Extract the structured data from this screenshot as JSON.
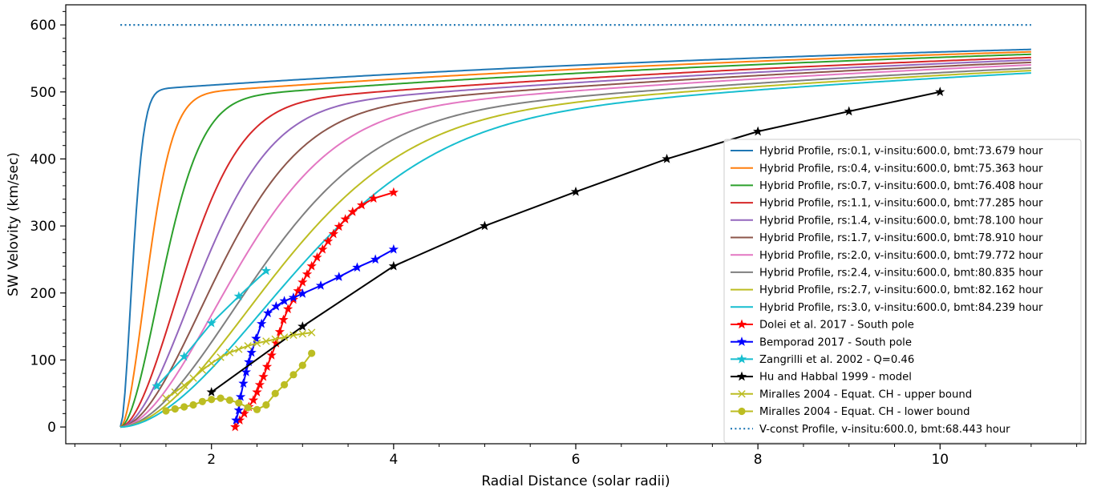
{
  "chart_data": {
    "type": "line",
    "title": "",
    "xlabel": "Radial Distance (solar radii)",
    "ylabel": "SW Velovity (km/sec)",
    "xlim": [
      0.4,
      11.6
    ],
    "ylim": [
      -25,
      630
    ],
    "xticks": [
      2,
      4,
      6,
      8,
      10
    ],
    "xtick_labels": [
      "2",
      "4",
      "6",
      "8",
      "10"
    ],
    "yticks": [
      0,
      100,
      200,
      300,
      400,
      500,
      600
    ],
    "ytick_labels": [
      "0",
      "100",
      "200",
      "300",
      "400",
      "500",
      "600"
    ],
    "grid": false,
    "legend_position": "lower-right",
    "hybrid_profiles": [
      {
        "name": "Hybrid Profile, rs:0.1, v-insitu:600.0, bmt:73.679 hour",
        "color": "#1f77b4",
        "rs": 0.1
      },
      {
        "name": "Hybrid Profile, rs:0.4, v-insitu:600.0, bmt:75.363 hour",
        "color": "#ff7f0e",
        "rs": 0.4
      },
      {
        "name": "Hybrid Profile, rs:0.7, v-insitu:600.0, bmt:76.408 hour",
        "color": "#2ca02c",
        "rs": 0.7
      },
      {
        "name": "Hybrid Profile, rs:1.1, v-insitu:600.0, bmt:77.285 hour",
        "color": "#d62728",
        "rs": 1.1
      },
      {
        "name": "Hybrid Profile, rs:1.4, v-insitu:600.0, bmt:78.100 hour",
        "color": "#9467bd",
        "rs": 1.4
      },
      {
        "name": "Hybrid Profile, rs:1.7, v-insitu:600.0, bmt:78.910 hour",
        "color": "#8c564b",
        "rs": 1.7
      },
      {
        "name": "Hybrid Profile, rs:2.0, v-insitu:600.0, bmt:79.772 hour",
        "color": "#e377c2",
        "rs": 2.0
      },
      {
        "name": "Hybrid Profile, rs:2.4, v-insitu:600.0, bmt:80.835 hour",
        "color": "#7f7f7f",
        "rs": 2.4
      },
      {
        "name": "Hybrid Profile, rs:2.7, v-insitu:600.0, bmt:82.162 hour",
        "color": "#bcbd22",
        "rs": 2.7
      },
      {
        "name": "Hybrid Profile, rs:3.0, v-insitu:600.0, bmt:84.239 hour",
        "color": "#17becf",
        "rs": 3.0
      }
    ],
    "hybrid_x_range": [
      1.0,
      11.0
    ],
    "observations": [
      {
        "name": "Dolei et al. 2017 - South pole",
        "color": "#ff0000",
        "marker": "star",
        "x": [
          2.26,
          2.31,
          2.36,
          2.41,
          2.46,
          2.5,
          2.53,
          2.57,
          2.61,
          2.66,
          2.71,
          2.75,
          2.79,
          2.84,
          2.9,
          2.95,
          3.0,
          3.05,
          3.1,
          3.16,
          3.22,
          3.28,
          3.34,
          3.4,
          3.47,
          3.55,
          3.65,
          3.78,
          4.0
        ],
        "y": [
          0,
          10,
          20,
          30,
          40,
          52,
          63,
          75,
          90,
          107,
          125,
          142,
          160,
          176,
          190,
          203,
          216,
          228,
          240,
          253,
          265,
          277,
          288,
          299,
          310,
          321,
          331,
          341,
          350
        ]
      },
      {
        "name": "Bemporad 2017 - South pole",
        "color": "#0000ff",
        "marker": "star",
        "x": [
          2.27,
          2.3,
          2.32,
          2.35,
          2.38,
          2.41,
          2.44,
          2.49,
          2.55,
          2.62,
          2.71,
          2.8,
          2.9,
          3.0,
          3.2,
          3.4,
          3.6,
          3.8,
          4.0
        ],
        "y": [
          10,
          25,
          45,
          65,
          82,
          97,
          111,
          132,
          154,
          170,
          180,
          188,
          193,
          199,
          211,
          224,
          238,
          250,
          265
        ]
      },
      {
        "name": "Zangrilli et al. 2002 - Q=0.46",
        "color": "#17becf",
        "marker": "star",
        "x": [
          1.4,
          1.7,
          2.0,
          2.3,
          2.6
        ],
        "y": [
          61,
          105,
          155,
          195,
          233
        ]
      },
      {
        "name": "Hu and Habbal 1999 - model",
        "color": "#000000",
        "marker": "star",
        "x": [
          2.0,
          3.0,
          4.0,
          5.0,
          6.0,
          7.0,
          8.0,
          9.0,
          10.0
        ],
        "y": [
          52,
          150,
          240,
          300,
          351,
          400,
          441,
          471,
          500
        ]
      },
      {
        "name": "Miralles 2004 - Equat. CH - upper bound",
        "color": "#bcbd22",
        "marker": "x",
        "x": [
          1.5,
          1.6,
          1.7,
          1.8,
          1.9,
          2.0,
          2.1,
          2.2,
          2.3,
          2.4,
          2.5,
          2.6,
          2.7,
          2.8,
          2.9,
          3.0,
          3.1
        ],
        "y": [
          43,
          52,
          62,
          73,
          85,
          95,
          104,
          111,
          116,
          121,
          125,
          128,
          131,
          134,
          137,
          139,
          141
        ]
      },
      {
        "name": "Miralles 2004 - Equat. CH - lower bound",
        "color": "#bcbd22",
        "marker": "circle",
        "x": [
          1.5,
          1.6,
          1.7,
          1.8,
          1.9,
          2.0,
          2.1,
          2.2,
          2.3,
          2.4,
          2.5,
          2.6,
          2.7,
          2.8,
          2.9,
          3.0,
          3.1
        ],
        "y": [
          24,
          27,
          30,
          33,
          38,
          41,
          43,
          40,
          36,
          29,
          26,
          33,
          50,
          63,
          78,
          92,
          110
        ]
      }
    ],
    "constant_profile": {
      "name": "V-const Profile, v-insitu:600.0, bmt:68.443 hour",
      "color": "#1f77b4",
      "x": [
        1.0,
        11.0
      ],
      "y": [
        600,
        600
      ]
    }
  }
}
